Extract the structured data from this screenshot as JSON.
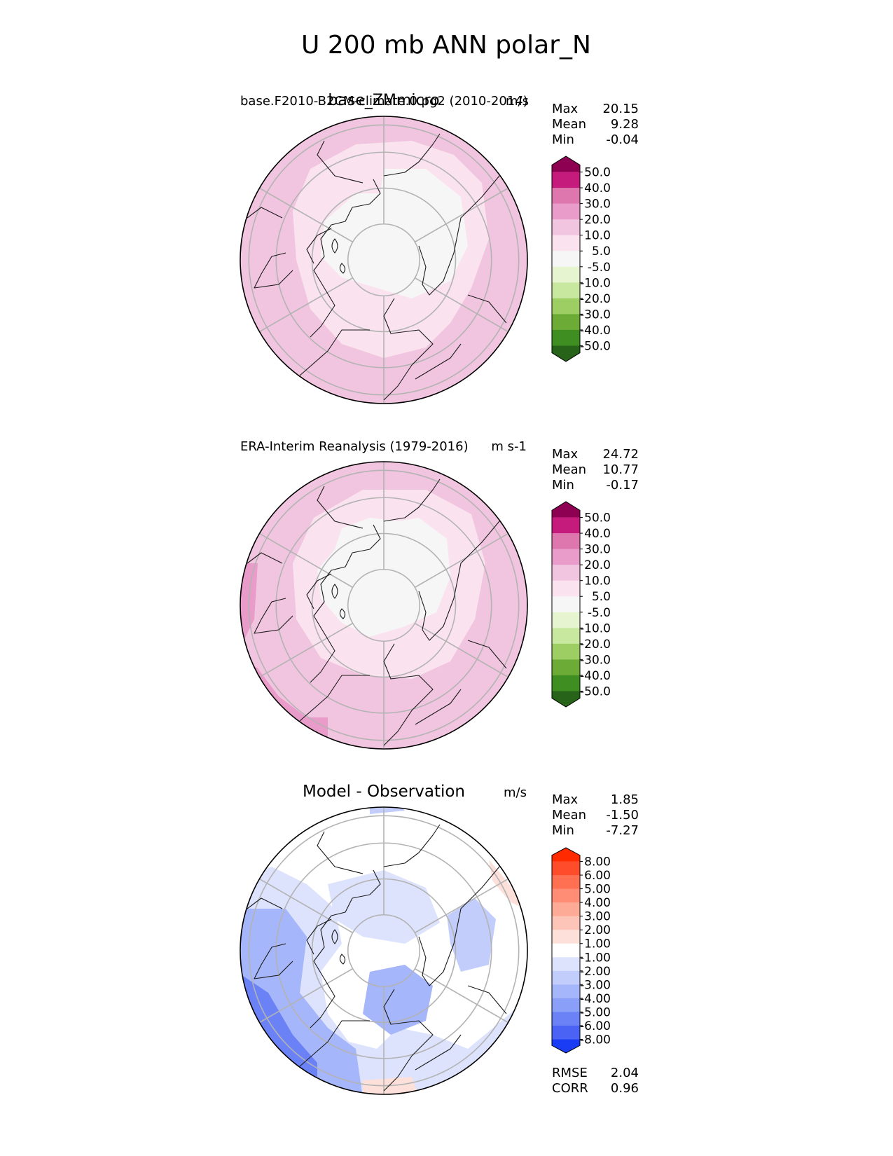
{
  "figure_title": "U 200 mb ANN polar_N",
  "colors": {
    "pink_bg": "#f1c5df",
    "pink_light": "#fae3ef",
    "near_white": "#f6f6f6",
    "grid": "#b3b3b3",
    "coast": "#1a1a1a"
  },
  "chart_data": [
    {
      "type": "heatmap",
      "projection": "north-polar-stereographic",
      "panel": "test",
      "title": "base_ZMmicro",
      "subtitle_left": "base.F2010-B2CM-climate.0.pg2 (2010-2014)",
      "units": "m/s",
      "stats": {
        "labels": [
          "Max",
          "Mean",
          "Min"
        ],
        "values": [
          "20.15",
          "9.28",
          "-0.04"
        ]
      },
      "colorbar": {
        "levels": [
          "50.0",
          "40.0",
          "30.0",
          "20.0",
          "10.0",
          "5.0",
          "-5.0",
          "-10.0",
          "-20.0",
          "-30.0",
          "-40.0",
          "-50.0"
        ],
        "colors": [
          "#8e0152",
          "#c51b7d",
          "#de77ae",
          "#e99cc9",
          "#f1c5df",
          "#fae3ef",
          "#f6f6f6",
          "#e6f5d0",
          "#c8e8a0",
          "#9cce64",
          "#6cab36",
          "#3e8e22",
          "#276419"
        ],
        "extend": "both"
      }
    },
    {
      "type": "heatmap",
      "projection": "north-polar-stereographic",
      "panel": "reference",
      "subtitle_left": "ERA-Interim Reanalysis (1979-2016)",
      "units": "m s-1",
      "stats": {
        "labels": [
          "Max",
          "Mean",
          "Min"
        ],
        "values": [
          "24.72",
          "10.77",
          "-0.17"
        ]
      },
      "colorbar": {
        "levels": [
          "50.0",
          "40.0",
          "30.0",
          "20.0",
          "10.0",
          "5.0",
          "-5.0",
          "-10.0",
          "-20.0",
          "-30.0",
          "-40.0",
          "-50.0"
        ],
        "colors": [
          "#8e0152",
          "#c51b7d",
          "#de77ae",
          "#e99cc9",
          "#f1c5df",
          "#fae3ef",
          "#f6f6f6",
          "#e6f5d0",
          "#c8e8a0",
          "#9cce64",
          "#6cab36",
          "#3e8e22",
          "#276419"
        ],
        "extend": "both"
      }
    },
    {
      "type": "heatmap",
      "projection": "north-polar-stereographic",
      "panel": "difference",
      "title": "Model - Observation",
      "units": "m/s",
      "stats": {
        "labels": [
          "Max",
          "Mean",
          "Min"
        ],
        "values": [
          "1.85",
          "-1.50",
          "-7.27"
        ]
      },
      "metrics": {
        "labels": [
          "RMSE",
          "CORR"
        ],
        "values": [
          "2.04",
          "0.96"
        ]
      },
      "colorbar": {
        "levels": [
          "8.00",
          "6.00",
          "5.00",
          "4.00",
          "3.00",
          "2.00",
          "1.00",
          "-1.00",
          "-2.00",
          "-3.00",
          "-4.00",
          "-5.00",
          "-6.00",
          "-8.00"
        ],
        "colors": [
          "#ff2a00",
          "#ff4d2b",
          "#ff6f52",
          "#ff8c74",
          "#fdaa96",
          "#fcc5b8",
          "#fde0da",
          "#ffffff",
          "#dde3fd",
          "#c2cdfb",
          "#a6b6fa",
          "#8a9ff8",
          "#6a82f6",
          "#4a63f4",
          "#1a3cf5"
        ],
        "extend": "both"
      }
    }
  ]
}
